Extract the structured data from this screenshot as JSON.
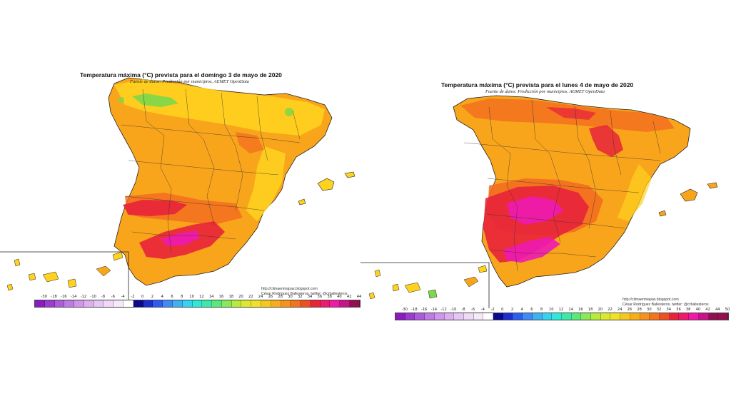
{
  "maps": [
    {
      "title": "Temperatura máxima (°C) prevista para el domingo 3 de mayo de 2020",
      "subtitle": "Fuente de datos: Predicción por municipios. AEMET OpenData",
      "credit_url": "http://climaenmapas.blogspot.com",
      "credit_author": "César Rodríguez Ballesteros. twitter: @crballesteros",
      "scale_ticks": [
        "-30",
        "-18",
        "-16",
        "-14",
        "-12",
        "-10",
        "-8",
        "-6",
        "-4",
        "-2",
        "0",
        "2",
        "4",
        "6",
        "8",
        "10",
        "12",
        "14",
        "16",
        "18",
        "20",
        "22",
        "24",
        "26",
        "28",
        "30",
        "32",
        "34",
        "36",
        "38",
        "40",
        "42",
        "44"
      ]
    },
    {
      "title": "Temperatura máxima (°C) prevista para el lunes 4 de mayo de 2020",
      "subtitle": "Fuente de datos: Predicción por municipios. AEMET OpenData",
      "credit_url": "http://climaenmapas.blogspot.com",
      "credit_author": "César Rodríguez Ballesteros. twitter: @crballesteros",
      "scale_ticks": [
        "-30",
        "-18",
        "-16",
        "-14",
        "-12",
        "-10",
        "-8",
        "-6",
        "-4",
        "-2",
        "0",
        "2",
        "4",
        "6",
        "8",
        "10",
        "12",
        "14",
        "16",
        "18",
        "20",
        "22",
        "24",
        "26",
        "28",
        "30",
        "32",
        "34",
        "36",
        "38",
        "40",
        "42",
        "44",
        "50"
      ]
    }
  ],
  "scale_colors": [
    "#8a1cbf",
    "#9b3ccf",
    "#ad5cd9",
    "#c07ae3",
    "#cf96e9",
    "#dcb0ef",
    "#e6c6f2",
    "#efd9f6",
    "#f6e9fa",
    "#ffffff",
    "#0a0a8c",
    "#1e2fd0",
    "#2f5cf0",
    "#3f8af4",
    "#3fb0f0",
    "#34d3f0",
    "#2fe8d5",
    "#3fe8a8",
    "#5ae87a",
    "#8ae85a",
    "#b8ea3c",
    "#dce82f",
    "#f0e02a",
    "#f6c81f",
    "#f8ae1c",
    "#f7931b",
    "#f2741c",
    "#ee4f22",
    "#e8233a",
    "#ee1a6e",
    "#f01aa8",
    "#c8128a",
    "#901050"
  ],
  "map_colors": {
    "cool": "#ffd21f",
    "warm": "#f9a51c",
    "hot": "#f26a1f",
    "very_hot": "#e8233a",
    "extreme": "#ee1ab4",
    "green": "#7cd84a"
  }
}
